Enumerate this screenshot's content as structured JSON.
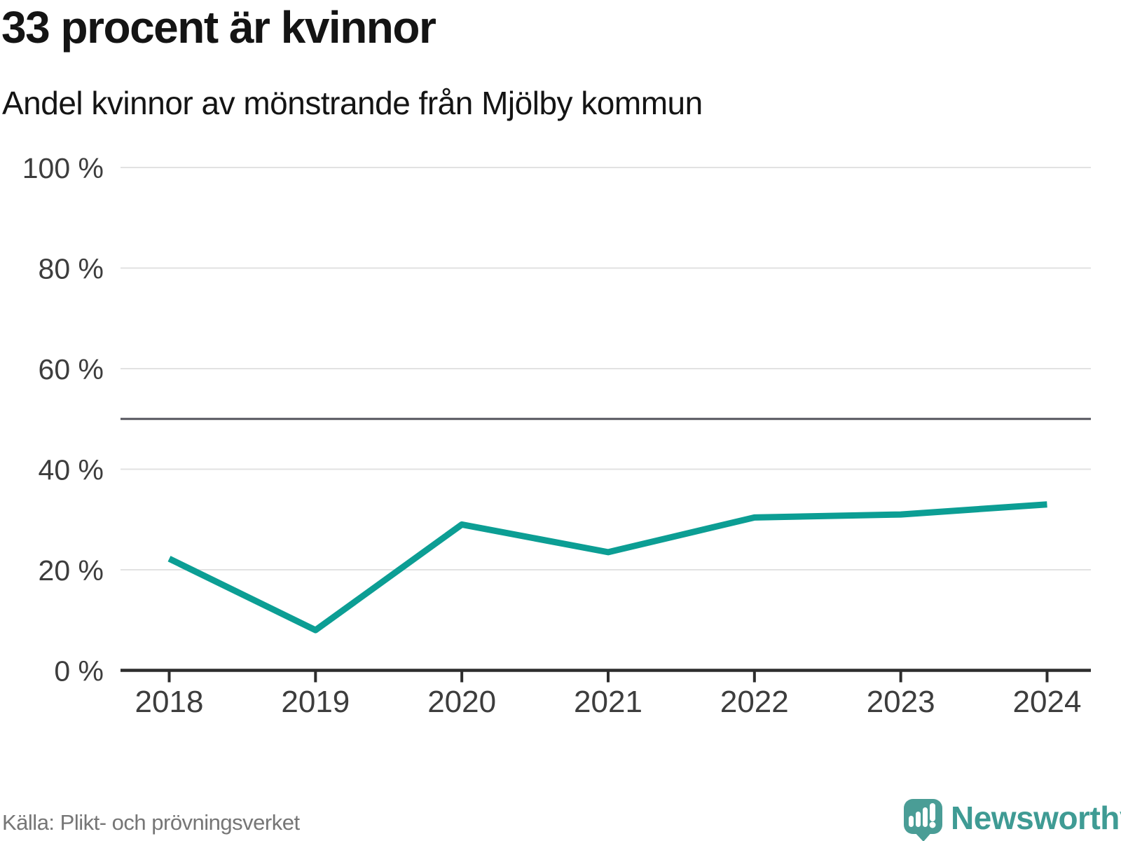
{
  "header": {
    "title": "33 procent är kvinnor",
    "subtitle": "Andel kvinnor av mönstrande från Mjölby kommun"
  },
  "chart_data": {
    "type": "line",
    "title": "33 procent är kvinnor",
    "subtitle": "Andel kvinnor av mönstrande från Mjölby kommun",
    "categories": [
      "2018",
      "2019",
      "2020",
      "2021",
      "2022",
      "2023",
      "2024"
    ],
    "series": [
      {
        "name": "Andel kvinnor av mönstrande",
        "values": [
          22.2,
          8.0,
          29.0,
          23.5,
          30.4,
          31.0,
          33.0
        ]
      }
    ],
    "unit": "%",
    "ylim": [
      0,
      100
    ],
    "y_ticks": [
      0,
      20,
      40,
      60,
      80,
      100
    ],
    "y_tick_labels": [
      "0 %",
      "20 %",
      "40 %",
      "60 %",
      "80 %",
      "100 %"
    ],
    "reference_line": 50,
    "grid": "horizontal",
    "legend": "none",
    "line_color": "#0c9e94",
    "reference_line_color": "#56565e",
    "gridline_color": "#e2e2e2",
    "axis_color": "#2d2d2d",
    "tick_label_color": "#3d3d3d"
  },
  "footer": {
    "source": "Källa: Plikt- och prövningsverket",
    "brand": "Newsworthy",
    "brand_color": "#3f9b94",
    "logo_icon": "speech-bubble-bar-chart-icon"
  }
}
